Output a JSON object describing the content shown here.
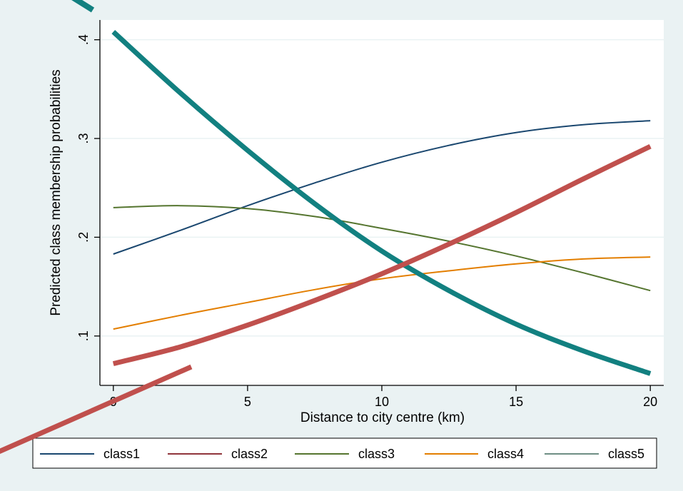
{
  "chart_data": {
    "type": "line",
    "title": "",
    "xlabel": "Distance to city centre (km)",
    "ylabel": "Predicted class membership probabilities",
    "xlim": [
      -0.5,
      20.5
    ],
    "ylim": [
      0.05,
      0.42
    ],
    "x_ticks": [
      0,
      5,
      10,
      15,
      20
    ],
    "x_tick_labels": [
      "0",
      "5",
      "10",
      "15",
      "20"
    ],
    "y_ticks": [
      0.1,
      0.2,
      0.3,
      0.4
    ],
    "y_tick_labels": [
      ".1",
      ".2",
      ".3",
      ".4"
    ],
    "grid": "horizontal",
    "legend_position": "bottom",
    "series": [
      {
        "name": "class1",
        "color": "#1a476f",
        "x": [
          0,
          2.5,
          5,
          7.5,
          10,
          12.5,
          15,
          17.5,
          20
        ],
        "values": [
          0.183,
          0.207,
          0.232,
          0.255,
          0.276,
          0.293,
          0.306,
          0.314,
          0.318
        ]
      },
      {
        "name": "class2",
        "color": "#90353b",
        "x": [
          0,
          2.5,
          5,
          7.5,
          10,
          12.5,
          15,
          17.5,
          20
        ],
        "values": [
          0.072,
          0.089,
          0.111,
          0.136,
          0.163,
          0.193,
          0.225,
          0.259,
          0.292
        ]
      },
      {
        "name": "class3",
        "color": "#55752f",
        "x": [
          0,
          2.5,
          5,
          7.5,
          10,
          12.5,
          15,
          17.5,
          20
        ],
        "values": [
          0.23,
          0.232,
          0.229,
          0.221,
          0.209,
          0.196,
          0.181,
          0.164,
          0.146
        ]
      },
      {
        "name": "class4",
        "color": "#e37e00",
        "x": [
          0,
          2.5,
          5,
          7.5,
          10,
          12.5,
          15,
          17.5,
          20
        ],
        "values": [
          0.107,
          0.121,
          0.134,
          0.147,
          0.158,
          0.166,
          0.173,
          0.178,
          0.18
        ]
      },
      {
        "name": "class5",
        "color": "#6e8e84",
        "x": [
          0,
          2.5,
          5,
          7.5,
          10,
          12.5,
          15,
          17.5,
          20
        ],
        "values": [
          0.408,
          0.346,
          0.288,
          0.234,
          0.186,
          0.146,
          0.112,
          0.085,
          0.062
        ]
      }
    ],
    "overlays": [
      {
        "name": "teal-annotation-stroke",
        "color": "#128080",
        "x": [
          0,
          2.5,
          5,
          7.5,
          10,
          12.5,
          15,
          17.5,
          20
        ],
        "values": [
          0.408,
          0.346,
          0.288,
          0.234,
          0.186,
          0.146,
          0.112,
          0.085,
          0.062
        ]
      },
      {
        "name": "red-annotation-stroke",
        "color": "#c0504d",
        "x": [
          0,
          2.5,
          5,
          7.5,
          10,
          12.5,
          15,
          17.5,
          20
        ],
        "values": [
          0.072,
          0.089,
          0.111,
          0.136,
          0.163,
          0.193,
          0.225,
          0.259,
          0.292
        ]
      }
    ]
  }
}
